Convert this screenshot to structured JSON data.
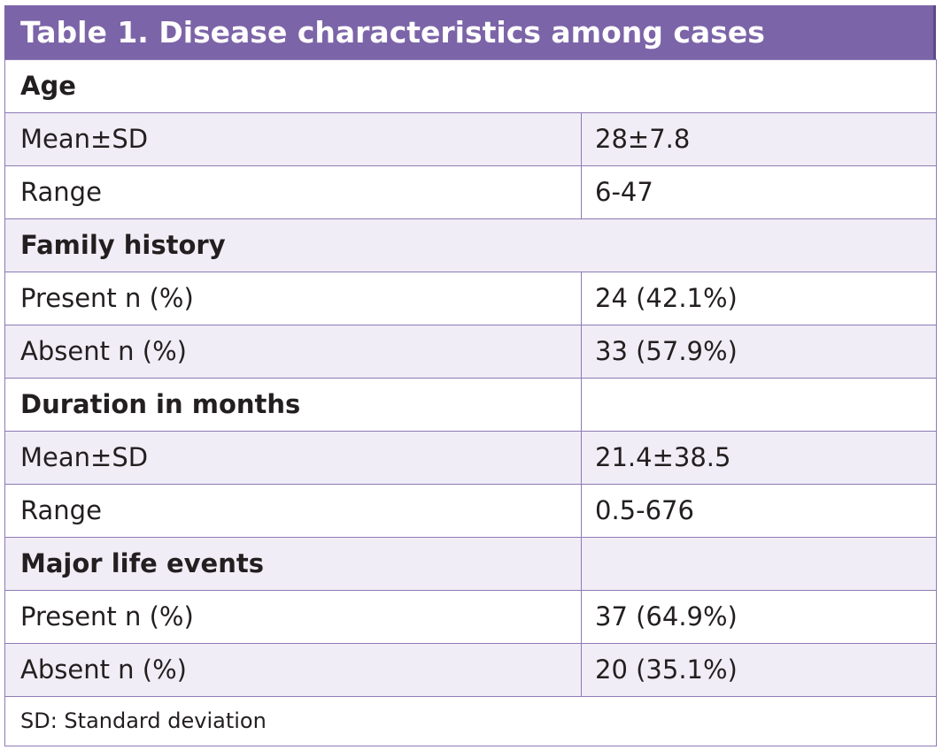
{
  "title": "Table 1. Disease characteristics among cases",
  "sections": [
    {
      "label": "Age",
      "rows": [
        {
          "label": "Mean±SD",
          "value": "28±7.8"
        },
        {
          "label": "Range",
          "value": "6-47"
        }
      ]
    },
    {
      "label": "Family history",
      "rows": [
        {
          "label": "Present n (%)",
          "value": "24 (42.1%)"
        },
        {
          "label": "Absent n (%)",
          "value": "33 (57.9%)"
        }
      ]
    },
    {
      "label": "Duration in months",
      "rows": [
        {
          "label": "Mean±SD",
          "value": "21.4±38.5"
        },
        {
          "label": "Range",
          "value": "0.5-676"
        }
      ]
    },
    {
      "label": "Major life events",
      "rows": [
        {
          "label": "Present n (%)",
          "value": "37 (64.9%)"
        },
        {
          "label": "Absent n (%)",
          "value": "20 (35.1%)"
        }
      ]
    }
  ],
  "footnote": "SD: Standard deviation"
}
